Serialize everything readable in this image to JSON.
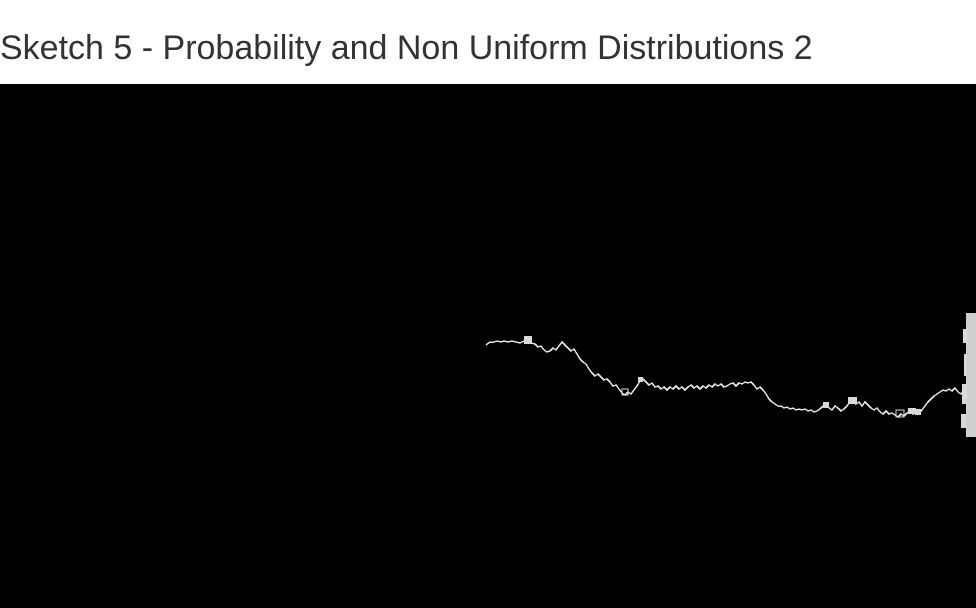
{
  "page": {
    "title": "Sketch 5 - Probability and Non Uniform Distributions 2"
  },
  "sketch": {
    "background_color": "#000000",
    "stroke_color": "#ffffff",
    "trail_color": "#cccccc"
  }
}
